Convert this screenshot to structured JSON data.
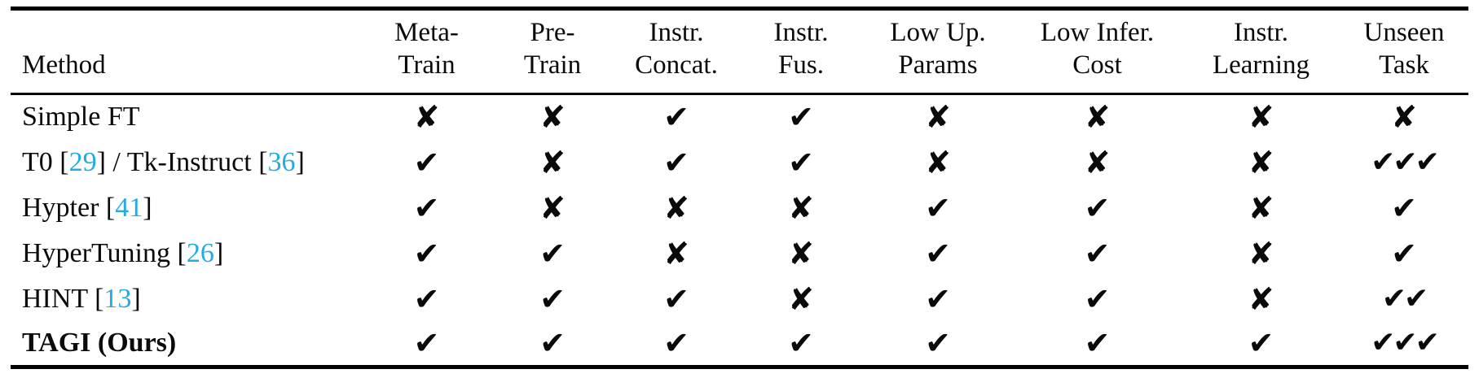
{
  "colors": {
    "background": "#ffffff",
    "text": "#0a0a0a",
    "rule": "#000000",
    "citation": "#25AAE2"
  },
  "glyphs": {
    "v": "✔",
    "x": "✘"
  },
  "table": {
    "method_header": "Method",
    "columns": [
      {
        "key": "meta-train",
        "line1": "Meta-",
        "line2": "Train"
      },
      {
        "key": "pre-train",
        "line1": "Pre-",
        "line2": "Train"
      },
      {
        "key": "instr-concat",
        "line1": "Instr.",
        "line2": "Concat."
      },
      {
        "key": "instr-fus",
        "line1": "Instr.",
        "line2": "Fus."
      },
      {
        "key": "low-up-params",
        "line1": "Low Up.",
        "line2": "Params"
      },
      {
        "key": "low-infer-cost",
        "line1": "Low Infer.",
        "line2": "Cost"
      },
      {
        "key": "instr-learning",
        "line1": "Instr.",
        "line2": "Learning"
      },
      {
        "key": "unseen-task",
        "line1": "Unseen",
        "line2": "Task"
      }
    ],
    "rows": [
      {
        "name": "simple-ft",
        "bold": false,
        "method_parts": [
          {
            "t": "Simple FT"
          }
        ],
        "marks": [
          "x",
          "x",
          "v",
          "v",
          "x",
          "x",
          "x",
          "x"
        ]
      },
      {
        "name": "t0-tk-instruct",
        "bold": false,
        "method_parts": [
          {
            "t": "T0 ["
          },
          {
            "t": "29",
            "cite": true
          },
          {
            "t": "] / Tk-Instruct ["
          },
          {
            "t": "36",
            "cite": true
          },
          {
            "t": "]"
          }
        ],
        "marks": [
          "v",
          "x",
          "v",
          "v",
          "x",
          "x",
          "x",
          "vvv"
        ]
      },
      {
        "name": "hypter",
        "bold": false,
        "method_parts": [
          {
            "t": "Hypter ["
          },
          {
            "t": "41",
            "cite": true
          },
          {
            "t": "]"
          }
        ],
        "marks": [
          "v",
          "x",
          "x",
          "x",
          "v",
          "v",
          "x",
          "v"
        ]
      },
      {
        "name": "hypertuning",
        "bold": false,
        "method_parts": [
          {
            "t": "HyperTuning ["
          },
          {
            "t": "26",
            "cite": true
          },
          {
            "t": "]"
          }
        ],
        "marks": [
          "v",
          "v",
          "x",
          "x",
          "v",
          "v",
          "x",
          "v"
        ]
      },
      {
        "name": "hint",
        "bold": false,
        "method_parts": [
          {
            "t": "HINT ["
          },
          {
            "t": "13",
            "cite": true
          },
          {
            "t": "]"
          }
        ],
        "marks": [
          "v",
          "v",
          "v",
          "x",
          "v",
          "v",
          "x",
          "vv"
        ]
      },
      {
        "name": "tagi-ours",
        "bold": true,
        "method_parts": [
          {
            "t": "TAGI (Ours)"
          }
        ],
        "marks": [
          "v",
          "v",
          "v",
          "v",
          "v",
          "v",
          "v",
          "vvv"
        ]
      }
    ]
  }
}
